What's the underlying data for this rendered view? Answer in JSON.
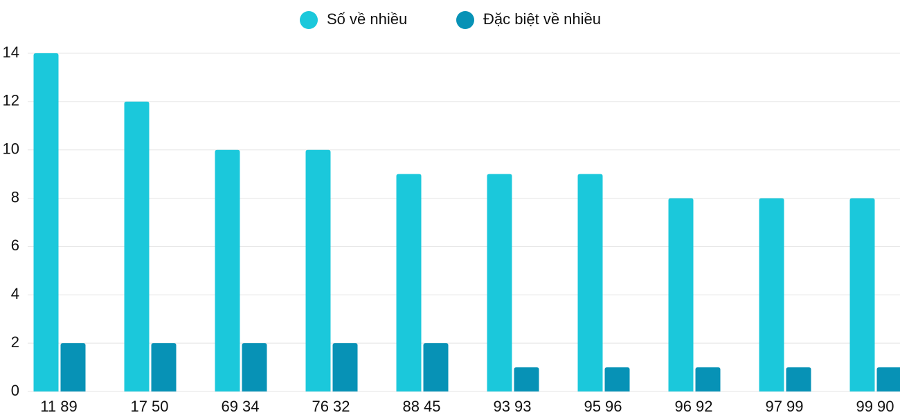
{
  "chart_data": {
    "type": "bar",
    "categories": [
      "11 89",
      "17 50",
      "69 34",
      "76 32",
      "88 45",
      "93 93",
      "95 96",
      "96 92",
      "97 99",
      "99 90"
    ],
    "series": [
      {
        "name": "Số về nhiều",
        "color": "#1bc8db",
        "values": [
          14,
          12,
          10,
          10,
          9,
          9,
          9,
          8,
          8,
          8
        ]
      },
      {
        "name": "Đặc biệt về nhiều",
        "color": "#0792b6",
        "values": [
          2,
          2,
          2,
          2,
          2,
          1,
          1,
          1,
          1,
          1
        ]
      }
    ],
    "ylim": [
      0,
      14
    ],
    "yticks": [
      0,
      2,
      4,
      6,
      8,
      10,
      12,
      14
    ],
    "grid": true,
    "legend": "top"
  }
}
